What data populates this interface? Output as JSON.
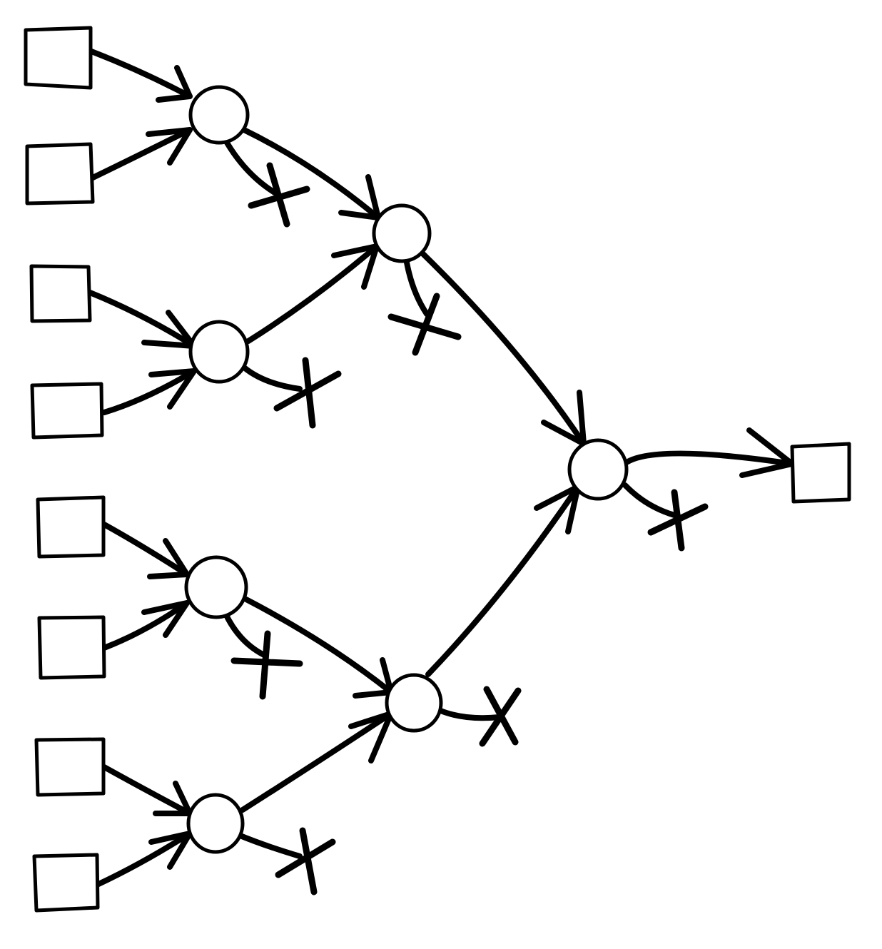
{
  "diagram": {
    "type": "binary-merge-tree",
    "stroke_color": "#000000",
    "background_color": "#ffffff",
    "input_box_count": 8,
    "merge_node_count": 7,
    "output_box_count": 1,
    "discard_marker": "x",
    "discard_marker_count": 7,
    "inputs": [
      "in-1",
      "in-2",
      "in-3",
      "in-4",
      "in-5",
      "in-6",
      "in-7",
      "in-8"
    ],
    "merge_nodes": [
      "level1-a",
      "level1-b",
      "level1-c",
      "level1-d",
      "level2-a",
      "level2-b",
      "root"
    ],
    "outputs": [
      "out"
    ],
    "edges": [
      {
        "from": "in-1",
        "to": "level1-a"
      },
      {
        "from": "in-2",
        "to": "level1-a"
      },
      {
        "from": "in-3",
        "to": "level1-b"
      },
      {
        "from": "in-4",
        "to": "level1-b"
      },
      {
        "from": "in-5",
        "to": "level1-c"
      },
      {
        "from": "in-6",
        "to": "level1-c"
      },
      {
        "from": "in-7",
        "to": "level1-d"
      },
      {
        "from": "in-8",
        "to": "level1-d"
      },
      {
        "from": "level1-a",
        "to": "level2-a"
      },
      {
        "from": "level1-b",
        "to": "level2-a"
      },
      {
        "from": "level1-c",
        "to": "level2-b"
      },
      {
        "from": "level1-d",
        "to": "level2-b"
      },
      {
        "from": "level2-a",
        "to": "root"
      },
      {
        "from": "level2-b",
        "to": "root"
      },
      {
        "from": "root",
        "to": "out"
      }
    ],
    "discards": [
      "level1-a",
      "level1-b",
      "level1-c",
      "level1-d",
      "level2-a",
      "level2-b",
      "root"
    ]
  }
}
